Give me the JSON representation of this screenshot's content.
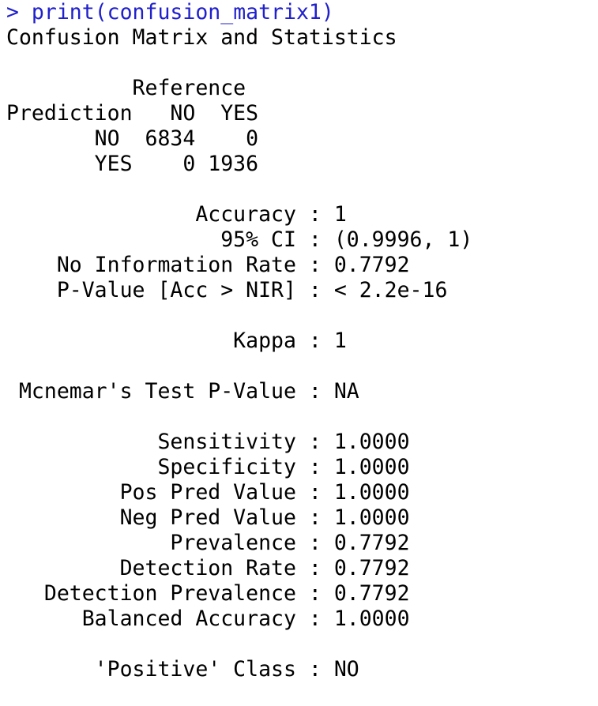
{
  "console": {
    "prompt": "> ",
    "command": "print(confusion_matrix1)",
    "lines": [
      "Confusion Matrix and Statistics",
      "",
      "          Reference",
      "Prediction   NO  YES",
      "       NO  6834    0",
      "       YES    0 1936",
      "",
      "               Accuracy : 1",
      "                 95% CI : (0.9996, 1)",
      "    No Information Rate : 0.7792",
      "    P-Value [Acc > NIR] : < 2.2e-16",
      "",
      "                  Kappa : 1",
      "",
      " Mcnemar's Test P-Value : NA",
      "",
      "            Sensitivity : 1.0000",
      "            Specificity : 1.0000",
      "         Pos Pred Value : 1.0000",
      "         Neg Pred Value : 1.0000",
      "             Prevalence : 0.7792",
      "         Detection Rate : 0.7792",
      "   Detection Prevalence : 0.7792",
      "      Balanced Accuracy : 1.0000",
      "",
      "       'Positive' Class : NO"
    ]
  },
  "colors": {
    "command": "#2020cc",
    "output": "#000000",
    "background": "#ffffff"
  }
}
